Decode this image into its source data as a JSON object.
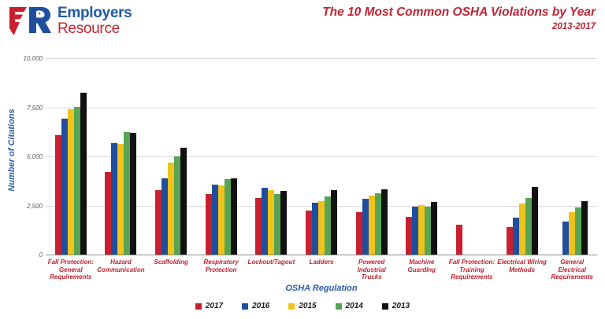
{
  "logo": {
    "line1": "Employers",
    "line2": "Resource"
  },
  "header": {
    "title": "The 10  Most Common OSHA Violations by Year",
    "subtitle": "2013-2017"
  },
  "chart_data": {
    "type": "bar",
    "title": "The 10 Most Common OSHA Violations by Year 2013-2017",
    "xlabel": "OSHA Regulation",
    "ylabel": "Number of Citations",
    "ylim": [
      0,
      10000
    ],
    "grid": true,
    "legend_position": "bottom",
    "yticks": [
      {
        "value": 0,
        "label": "0"
      },
      {
        "value": 2500,
        "label": "2,500"
      },
      {
        "value": 5000,
        "label": "5,000"
      },
      {
        "value": 7500,
        "label": "7,500"
      },
      {
        "value": 10000,
        "label": "10,000"
      }
    ],
    "categories": [
      "Fall Protection:\nGeneral\nRequirements",
      "Hazard\nCommunication",
      "Scaffolding",
      "Respiratory\nProtection",
      "Lockout/Tagout",
      "Ladders",
      "Powered\nIndustrial\nTrucks",
      "Machine\nGuarding",
      "Fall Protection:\nTraining\nRequirements",
      "Electrical Wiring\nMethods",
      "General\nElectrical\nRequirements"
    ],
    "series": [
      {
        "name": "2017",
        "color": "#C8202E",
        "values": [
          6100,
          4200,
          3290,
          3100,
          2880,
          2240,
          2160,
          1930,
          1520,
          1400,
          0
        ]
      },
      {
        "name": "2016",
        "color": "#1F4E9E",
        "values": [
          6910,
          5670,
          3900,
          3570,
          3400,
          2630,
          2860,
          2450,
          0,
          1900,
          1680
        ]
      },
      {
        "name": "2015",
        "color": "#EFC31A",
        "values": [
          7410,
          5650,
          4700,
          3530,
          3290,
          2720,
          3000,
          2520,
          0,
          2600,
          2150
        ]
      },
      {
        "name": "2014",
        "color": "#58A354",
        "values": [
          7520,
          6240,
          5000,
          3840,
          3080,
          2960,
          3110,
          2450,
          0,
          2880,
          2400
        ]
      },
      {
        "name": "2013",
        "color": "#111111",
        "values": [
          8250,
          6200,
          5450,
          3870,
          3250,
          3280,
          3340,
          2680,
          0,
          3450,
          2720
        ]
      }
    ]
  },
  "colors": {
    "title_red": "#BE2532",
    "label_red": "#BF1E2E",
    "axis_blue": "#2A5CAA",
    "logo_blue": "#1E5AA5",
    "logo_red": "#C8202E",
    "gridline": "#D9D9D9",
    "tick_text": "#595959"
  }
}
